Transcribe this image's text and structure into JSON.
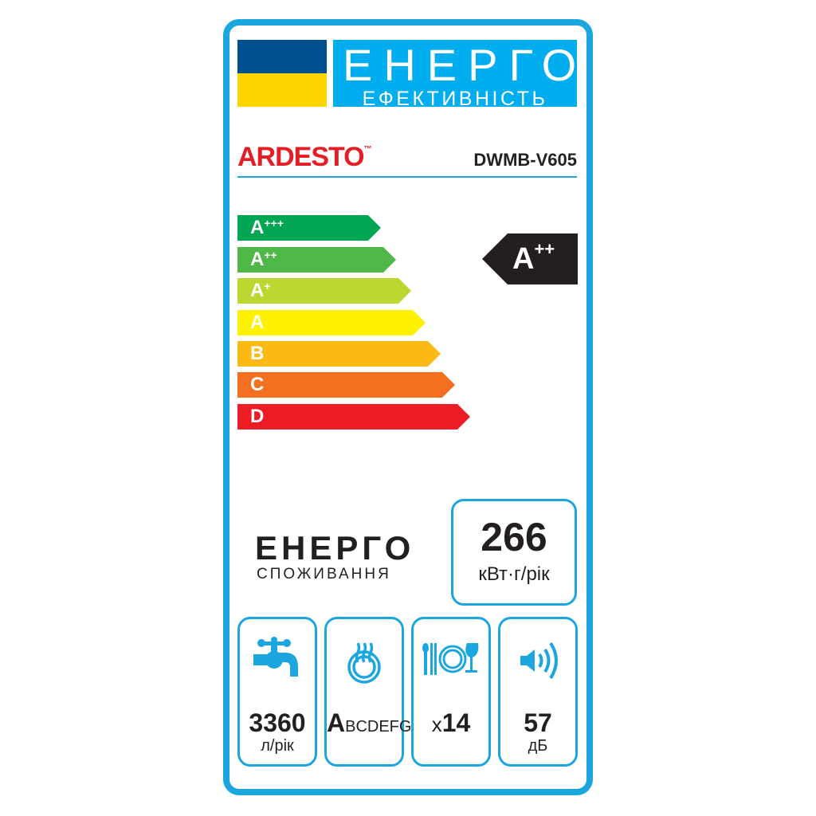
{
  "header": {
    "title": "ЕНЕРГО",
    "subtitle": "ЕФЕКТИВНІСТЬ"
  },
  "brand": {
    "name": "ARDESTO",
    "tm": "™",
    "model": "DWMB-V605"
  },
  "classes": [
    {
      "label": "A",
      "sup": "+++",
      "color": "#00a651"
    },
    {
      "label": "A",
      "sup": "++",
      "color": "#50b848"
    },
    {
      "label": "A",
      "sup": "+",
      "color": "#bed630"
    },
    {
      "label": "A",
      "sup": "",
      "color": "#fff200"
    },
    {
      "label": "B",
      "sup": "",
      "color": "#fdb913"
    },
    {
      "label": "C",
      "sup": "",
      "color": "#f37021"
    },
    {
      "label": "D",
      "sup": "",
      "color": "#ed1c24"
    }
  ],
  "rating": {
    "label": "A",
    "sup": "++"
  },
  "consumption": {
    "title": "ЕНЕРГО",
    "subtitle": "СПОЖИВАННЯ",
    "value": "266",
    "unit": "кВт·г/рік"
  },
  "specs": [
    {
      "icon": "water-tap-icon",
      "value": "3360",
      "unit": "л/рік"
    },
    {
      "icon": "drying-plate-icon",
      "value_big": "A",
      "value_small": "BCDEFG"
    },
    {
      "icon": "place-settings-icon",
      "prefix": "x",
      "value": "14"
    },
    {
      "icon": "noise-speaker-icon",
      "value": "57",
      "unit": "дБ"
    }
  ],
  "colors": {
    "frame": "#1ba6e0",
    "header": "#00aeef",
    "flag_blue": "#00508f",
    "flag_yellow": "#ffd500",
    "brand": "#e31e24"
  }
}
